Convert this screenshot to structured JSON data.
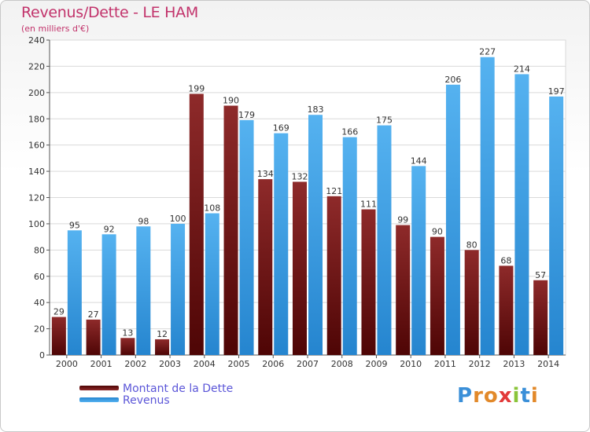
{
  "title": "Revenus/Dette - LE HAM",
  "subtitle": "(en milliers d'€)",
  "logo": "Proxiti",
  "colors": {
    "dette": "#7b1414",
    "revenus": "#3a9ee4",
    "title": "#c2336b",
    "legend_text": "#5b56d8"
  },
  "chart_data": {
    "type": "bar",
    "categories": [
      "2000",
      "2001",
      "2002",
      "2003",
      "2004",
      "2005",
      "2006",
      "2007",
      "2008",
      "2009",
      "2010",
      "2011",
      "2012",
      "2013",
      "2014"
    ],
    "series": [
      {
        "name": "Montant de la Dette",
        "values": [
          29,
          27,
          13,
          12,
          199,
          190,
          134,
          132,
          121,
          111,
          99,
          90,
          80,
          68,
          57
        ]
      },
      {
        "name": "Revenus",
        "values": [
          95,
          92,
          98,
          100,
          108,
          179,
          169,
          183,
          166,
          175,
          144,
          206,
          227,
          214,
          197
        ]
      }
    ],
    "ylim": [
      0,
      240
    ],
    "yticks": [
      0,
      20,
      40,
      60,
      80,
      100,
      120,
      140,
      160,
      180,
      200,
      220,
      240
    ],
    "grid": true,
    "legend": "bottom-left"
  }
}
